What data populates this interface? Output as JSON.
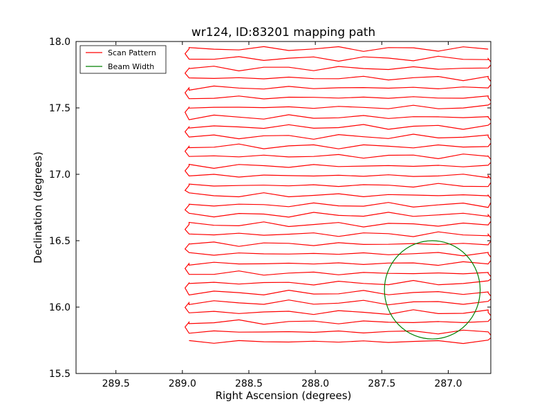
{
  "chart_data": {
    "type": "line",
    "title": "wr124, ID:83201 mapping path",
    "xlabel": "Right Ascension (degrees)",
    "ylabel": "Declination (degrees)",
    "xlim": [
      289.8,
      286.68
    ],
    "ylim": [
      15.5,
      18.0
    ],
    "x_inverted": true,
    "grid": false,
    "legend_position": "top-left",
    "x_ticks": [
      289.5,
      289.0,
      288.5,
      288.0,
      287.5,
      287.0
    ],
    "x_tick_labels": [
      "289.5",
      "289.0",
      "288.5",
      "288.0",
      "287.5",
      "287.0"
    ],
    "y_ticks": [
      15.5,
      16.0,
      16.5,
      17.0,
      17.5,
      18.0
    ],
    "y_tick_labels": [
      "15.5",
      "16.0",
      "16.5",
      "17.0",
      "17.5",
      "18.0"
    ],
    "series": [
      {
        "name": "Scan Pattern",
        "color": "#ff0000",
        "kind": "raster",
        "x_left": 288.95,
        "x_right": 286.7,
        "y_start": 15.74,
        "y_end": 18.0,
        "row_spacing": 0.0735,
        "rows": 31,
        "turn_width": 0.03
      },
      {
        "name": "Beam Width",
        "color": "#008000",
        "kind": "circle",
        "center_x": 287.12,
        "center_y": 16.13,
        "radius_ra": 0.36,
        "radius_dec": 0.37
      }
    ]
  }
}
